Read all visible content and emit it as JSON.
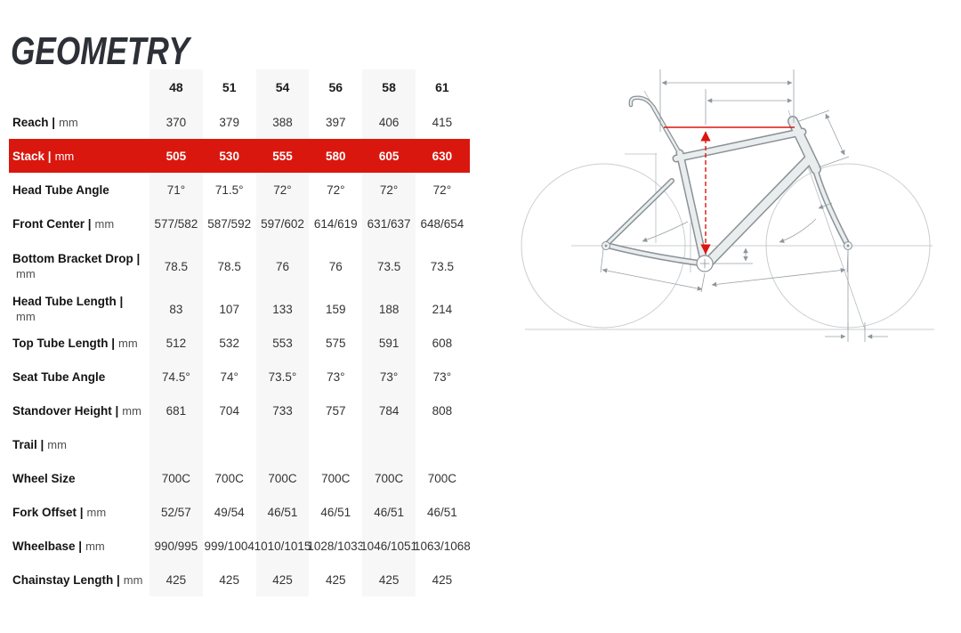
{
  "page": {
    "title": "GEOMETRY"
  },
  "colors": {
    "accent_red": "#da170e",
    "stripe_gray": "#f7f7f7",
    "title_color": "#2d3036",
    "frame_fill": "#e9edee",
    "frame_outline": "#8a9297",
    "dimension_line_gray": "#9aa1a5"
  },
  "table": {
    "sizes": [
      "48",
      "51",
      "54",
      "56",
      "58",
      "61"
    ],
    "rows": [
      {
        "label": "Reach",
        "unit": "mm",
        "highlight": false,
        "values": [
          "370",
          "379",
          "388",
          "397",
          "406",
          "415"
        ]
      },
      {
        "label": "Stack",
        "unit": "mm",
        "highlight": true,
        "values": [
          "505",
          "530",
          "555",
          "580",
          "605",
          "630"
        ]
      },
      {
        "label": "Head Tube Angle",
        "unit": "",
        "highlight": false,
        "values": [
          "71°",
          "71.5°",
          "72°",
          "72°",
          "72°",
          "72°"
        ]
      },
      {
        "label": "Front Center",
        "unit": "mm",
        "highlight": false,
        "values": [
          "577/582",
          "587/592",
          "597/602",
          "614/619",
          "631/637",
          "648/654"
        ]
      },
      {
        "label": "Bottom Bracket Drop",
        "unit": "mm",
        "highlight": false,
        "tall": true,
        "values": [
          "78.5",
          "78.5",
          "76",
          "76",
          "73.5",
          "73.5"
        ]
      },
      {
        "label": "Head Tube Length",
        "unit": "mm",
        "highlight": false,
        "values": [
          "83",
          "107",
          "133",
          "159",
          "188",
          "214"
        ]
      },
      {
        "label": "Top Tube Length",
        "unit": "mm",
        "highlight": false,
        "values": [
          "512",
          "532",
          "553",
          "575",
          "591",
          "608"
        ]
      },
      {
        "label": "Seat Tube Angle",
        "unit": "",
        "highlight": false,
        "values": [
          "74.5°",
          "74°",
          "73.5°",
          "73°",
          "73°",
          "73°"
        ]
      },
      {
        "label": "Standover Height",
        "unit": "mm",
        "highlight": false,
        "values": [
          "681",
          "704",
          "733",
          "757",
          "784",
          "808"
        ]
      },
      {
        "label": "Trail",
        "unit": "mm",
        "highlight": false,
        "values": [
          "",
          "",
          "",
          "",
          "",
          ""
        ]
      },
      {
        "label": "Wheel Size",
        "unit": "",
        "highlight": false,
        "values": [
          "700C",
          "700C",
          "700C",
          "700C",
          "700C",
          "700C"
        ]
      },
      {
        "label": "Fork Offset",
        "unit": "mm",
        "highlight": false,
        "values": [
          "52/57",
          "49/54",
          "46/51",
          "46/51",
          "46/51",
          "46/51"
        ]
      },
      {
        "label": "Wheelbase",
        "unit": "mm",
        "highlight": false,
        "values": [
          "990/995",
          "999/1004",
          "1010/1015",
          "1028/1033",
          "1046/1051",
          "1063/1068"
        ]
      },
      {
        "label": "Chainstay Length",
        "unit": "mm",
        "highlight": false,
        "values": [
          "425",
          "425",
          "425",
          "425",
          "425",
          "425"
        ]
      }
    ]
  },
  "diagram": {
    "description": "Technical line drawing of road bike frame geometry, rear-facing-left, with dimension lines",
    "highlighted_measurement": "Stack"
  }
}
